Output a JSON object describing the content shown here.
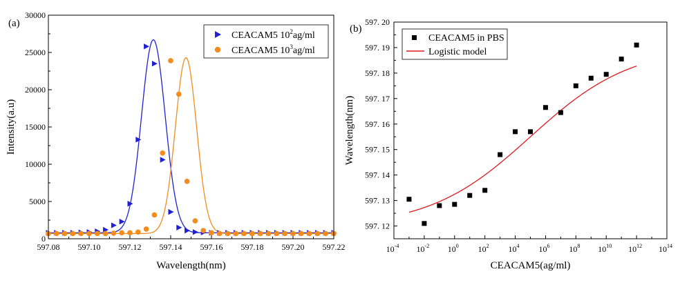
{
  "chart_data": [
    {
      "type": "line",
      "panel_label": "(a)",
      "xlabel": "Wavelength(nm)",
      "ylabel": "Intensity(a.u)",
      "xlim": [
        597.08,
        597.22
      ],
      "ylim": [
        0,
        30000
      ],
      "x_ticks": [
        "597.08",
        "597.10",
        "597.12",
        "597.14",
        "597.16",
        "597.18",
        "597.20",
        "597.22"
      ],
      "y_ticks": [
        "0",
        "5000",
        "10000",
        "15000",
        "20000",
        "25000",
        "30000"
      ],
      "legend_position": "top-right",
      "series": [
        {
          "name": "CEACAM5 10",
          "name_sup": "2",
          "name_suffix": "ag/ml",
          "color": "#1f1fd6",
          "marker": "triangle-right",
          "fit": {
            "amplitude": 25900,
            "center": 597.1315,
            "sigma": 0.0058,
            "baseline": 800
          },
          "x": [
            597.08,
            597.084,
            597.088,
            597.092,
            597.096,
            597.1,
            597.104,
            597.108,
            597.112,
            597.116,
            597.12,
            597.124,
            597.128,
            597.132,
            597.136,
            597.14,
            597.144,
            597.148,
            597.152,
            597.156,
            597.16,
            597.164,
            597.168,
            597.172,
            597.176,
            597.18,
            597.184,
            597.188,
            597.192,
            597.196,
            597.2,
            597.204,
            597.208,
            597.212,
            597.216,
            597.22
          ],
          "values": [
            800,
            800,
            800,
            800,
            850,
            900,
            1000,
            1200,
            1800,
            2300,
            4700,
            13300,
            25800,
            23500,
            10600,
            3600,
            1500,
            1100,
            900,
            850,
            800,
            800,
            800,
            800,
            800,
            800,
            800,
            800,
            800,
            800,
            800,
            800,
            800,
            800,
            800,
            800
          ]
        },
        {
          "name": "CEACAM5 10",
          "name_sup": "3",
          "name_suffix": "ag/ml",
          "color": "#f28c1c",
          "marker": "circle",
          "fit": {
            "amplitude": 23600,
            "center": 597.1475,
            "sigma": 0.0052,
            "baseline": 700
          },
          "x": [
            597.08,
            597.084,
            597.088,
            597.092,
            597.096,
            597.1,
            597.104,
            597.108,
            597.112,
            597.116,
            597.12,
            597.124,
            597.128,
            597.132,
            597.136,
            597.14,
            597.144,
            597.148,
            597.152,
            597.156,
            597.16,
            597.164,
            597.168,
            597.172,
            597.176,
            597.18,
            597.184,
            597.188,
            597.192,
            597.196,
            597.2,
            597.204,
            597.208,
            597.212,
            597.216,
            597.22
          ],
          "values": [
            700,
            700,
            700,
            700,
            700,
            700,
            700,
            700,
            750,
            800,
            800,
            900,
            1300,
            3200,
            11500,
            23900,
            19400,
            7700,
            2400,
            1100,
            800,
            700,
            700,
            700,
            700,
            700,
            700,
            700,
            700,
            700,
            700,
            700,
            700,
            700,
            700,
            700
          ]
        }
      ]
    },
    {
      "type": "scatter",
      "panel_label": "(b)",
      "xlabel": "CEACAM5(ag/ml)",
      "ylabel": "Wavelength(nm)",
      "x_scale": "log",
      "xlim_exp": [
        -4,
        14
      ],
      "ylim": [
        597.115,
        597.2
      ],
      "x_tick_exponents": [
        -4,
        -2,
        0,
        2,
        4,
        6,
        8,
        10,
        12,
        14
      ],
      "x_tick_labels": [
        "10",
        "10",
        "10",
        "10",
        "10",
        "10",
        "10",
        "10",
        "10",
        "10"
      ],
      "x_tick_sups": [
        "-4",
        "-2",
        "0",
        "2",
        "4",
        "6",
        "8",
        "10",
        "12",
        "14"
      ],
      "y_ticks": [
        "597. 12",
        "597. 13",
        "597. 14",
        "597. 15",
        "597. 16",
        "597. 17",
        "597. 18",
        "597. 19",
        "597. 20"
      ],
      "legend_position": "top-left",
      "series": [
        {
          "name": "CEACAM5 in PBS",
          "color": "#000000",
          "marker": "square",
          "x_exp": [
            -3,
            -2,
            -1,
            0,
            1,
            2,
            3,
            4,
            5,
            6,
            7,
            8,
            9,
            10,
            11,
            12
          ],
          "values": [
            597.1305,
            597.121,
            597.128,
            597.1285,
            597.132,
            597.134,
            597.148,
            597.157,
            597.157,
            597.1665,
            597.1645,
            597.175,
            597.178,
            597.1795,
            597.1855,
            597.191
          ]
        },
        {
          "name": "Logistic model",
          "color": "#e0191c",
          "marker": "line",
          "fit": {
            "bottom": 597.1195,
            "top": 597.1905,
            "center_exp": 5.0,
            "slope": 0.3
          },
          "x_exp_range": [
            -3,
            12
          ]
        }
      ]
    }
  ]
}
